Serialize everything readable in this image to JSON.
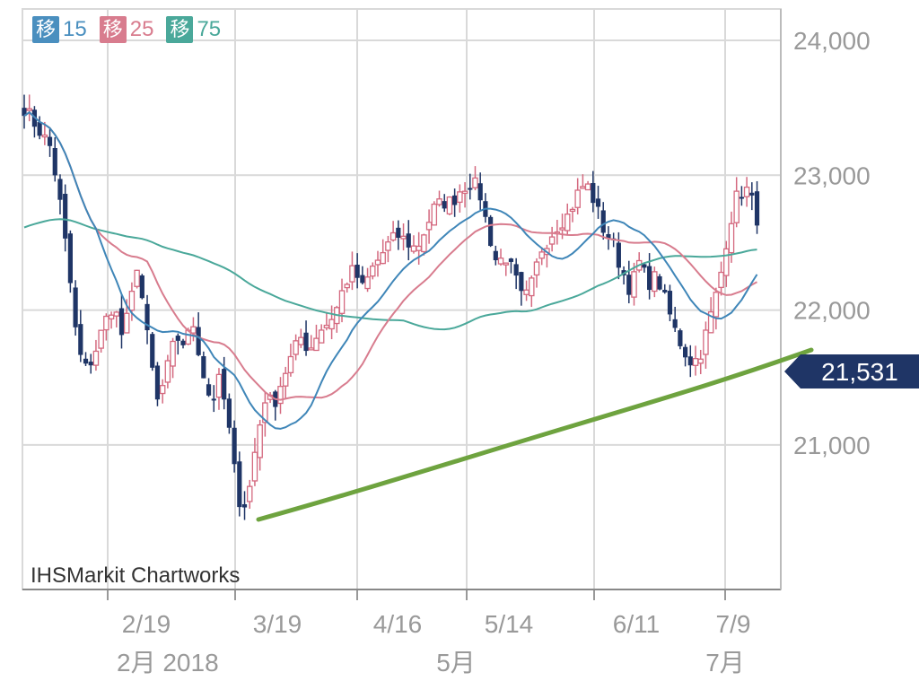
{
  "legend": [
    {
      "badge": "移",
      "value": "15",
      "color": "#4a8fbf"
    },
    {
      "badge": "移",
      "value": "25",
      "color": "#d87c8e"
    },
    {
      "badge": "移",
      "value": "75",
      "color": "#4aa89a"
    }
  ],
  "watermark": "IHSMarkit Chartworks",
  "price_marker": "21,531",
  "colors": {
    "up_candle": "#d4697f",
    "down_candle": "#1f3566",
    "ma15": "#3f86b8",
    "ma25": "#d87c8e",
    "ma75": "#4aa89a",
    "trendline": "#6ea33f",
    "grid": "#d9d9d9",
    "axis_text": "#999999",
    "marker_bg": "#1f3566"
  },
  "chart_data": {
    "type": "candlestick",
    "y_ticks": [
      "24,000",
      "23,000",
      "22,000",
      "21,000"
    ],
    "y_tick_values": [
      24000,
      23000,
      22000,
      21000
    ],
    "x_ticks": [
      "2/19",
      "3/19",
      "4/16",
      "5/14",
      "6/11",
      "7/9"
    ],
    "x_sub_labels": [
      "2月 2018",
      "5月",
      "7月"
    ],
    "ylim": [
      20000,
      24250
    ],
    "last_price": 21531,
    "ma_periods": [
      15,
      25,
      75
    ],
    "trendline": {
      "from": [
        "3/23",
        20400
      ],
      "to": [
        "7/13",
        21720
      ]
    }
  }
}
